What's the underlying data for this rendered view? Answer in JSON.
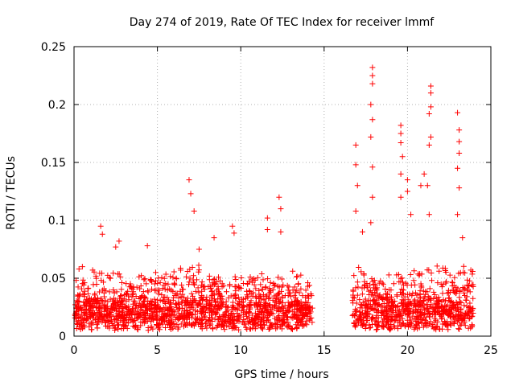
{
  "chart_data": {
    "type": "scatter",
    "title": "Day 274 of 2019, Rate Of TEC Index for receiver lmmf",
    "xlabel": "GPS time / hours",
    "ylabel": "ROTI / TECUs",
    "xlim": [
      0,
      25
    ],
    "ylim": [
      0,
      0.25
    ],
    "x_ticks": [
      0,
      5,
      10,
      15,
      20,
      25
    ],
    "x_tick_labels": [
      "0",
      "5",
      "10",
      "15",
      "20",
      "25"
    ],
    "y_ticks": [
      0,
      0.05,
      0.1,
      0.15,
      0.2,
      0.25
    ],
    "y_tick_labels": [
      "0",
      "0.05",
      "0.1",
      "0.15",
      "0.2",
      "0.25"
    ],
    "grid": true,
    "marker": "+",
    "marker_color": "#ff0000",
    "data_gap_hours": [
      14.3,
      16.7
    ],
    "series": [
      {
        "name": "ROTI",
        "points": [
          [
            0.3,
            0.058
          ],
          [
            0.5,
            0.06
          ],
          [
            1.6,
            0.095
          ],
          [
            1.7,
            0.088
          ],
          [
            2.5,
            0.077
          ],
          [
            2.7,
            0.082
          ],
          [
            4.4,
            0.078
          ],
          [
            6.9,
            0.135
          ],
          [
            7.0,
            0.123
          ],
          [
            7.2,
            0.108
          ],
          [
            7.5,
            0.075
          ],
          [
            8.4,
            0.085
          ],
          [
            9.5,
            0.095
          ],
          [
            9.6,
            0.089
          ],
          [
            11.6,
            0.102
          ],
          [
            11.6,
            0.092
          ],
          [
            12.3,
            0.12
          ],
          [
            12.4,
            0.11
          ],
          [
            12.4,
            0.09
          ],
          [
            16.9,
            0.165
          ],
          [
            16.9,
            0.148
          ],
          [
            17.0,
            0.13
          ],
          [
            16.9,
            0.108
          ],
          [
            17.3,
            0.09
          ],
          [
            17.9,
            0.232
          ],
          [
            17.9,
            0.225
          ],
          [
            17.9,
            0.218
          ],
          [
            17.8,
            0.2
          ],
          [
            17.9,
            0.187
          ],
          [
            17.8,
            0.172
          ],
          [
            17.9,
            0.146
          ],
          [
            17.9,
            0.12
          ],
          [
            17.8,
            0.098
          ],
          [
            19.6,
            0.182
          ],
          [
            19.6,
            0.175
          ],
          [
            19.6,
            0.167
          ],
          [
            19.7,
            0.155
          ],
          [
            19.6,
            0.14
          ],
          [
            19.6,
            0.12
          ],
          [
            20.0,
            0.135
          ],
          [
            20.0,
            0.125
          ],
          [
            20.2,
            0.105
          ],
          [
            20.8,
            0.13
          ],
          [
            21.0,
            0.14
          ],
          [
            21.4,
            0.216
          ],
          [
            21.4,
            0.21
          ],
          [
            21.4,
            0.198
          ],
          [
            21.3,
            0.192
          ],
          [
            21.4,
            0.172
          ],
          [
            21.3,
            0.165
          ],
          [
            21.2,
            0.13
          ],
          [
            21.3,
            0.105
          ],
          [
            23.0,
            0.193
          ],
          [
            23.1,
            0.178
          ],
          [
            23.1,
            0.168
          ],
          [
            23.1,
            0.158
          ],
          [
            23.0,
            0.145
          ],
          [
            23.1,
            0.128
          ],
          [
            23.0,
            0.105
          ],
          [
            23.3,
            0.085
          ],
          [
            23.8,
            0.057
          ]
        ]
      }
    ]
  }
}
